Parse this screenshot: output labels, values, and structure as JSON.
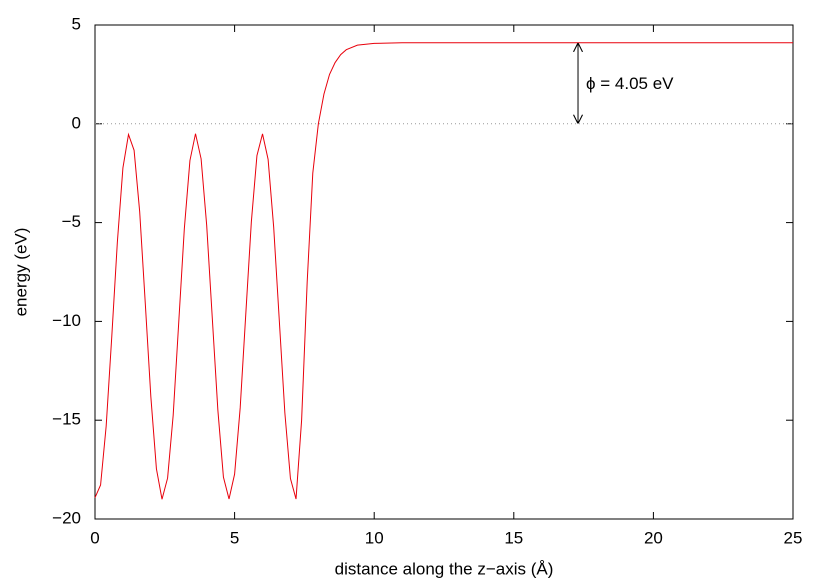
{
  "chart_data": {
    "type": "line",
    "x_label": "distance along the z−axis (Å)",
    "y_label": "energy (eV)",
    "xlim": [
      0,
      25
    ],
    "xticks": [
      0,
      5,
      10,
      15,
      20,
      25
    ],
    "ylim": [
      -20,
      5
    ],
    "yticks": [
      {
        "value": -20,
        "label": "−20"
      },
      {
        "value": -15,
        "label": "−15"
      },
      {
        "value": -10,
        "label": "−10"
      },
      {
        "value": -5,
        "label": "−5"
      },
      0,
      5
    ],
    "zero_line": true,
    "annotation": {
      "text": "ϕ = 4.05 eV",
      "x": 17.3,
      "y_from": 0,
      "y_to": 4.1
    },
    "series": [
      {
        "color": "#e8000b",
        "x": [
          0,
          0.2,
          0.4,
          0.6,
          0.8,
          1.0,
          1.2,
          1.4,
          1.6,
          1.8,
          2.0,
          2.2,
          2.4,
          2.6,
          2.8,
          3.0,
          3.2,
          3.4,
          3.6,
          3.8,
          4.0,
          4.2,
          4.4,
          4.6,
          4.8,
          5.0,
          5.2,
          5.4,
          5.6,
          5.8,
          6.0,
          6.2,
          6.4,
          6.6,
          6.8,
          7.0,
          7.2,
          7.4,
          7.6,
          7.8,
          8.0,
          8.2,
          8.4,
          8.6,
          8.8,
          9.0,
          9.4,
          10,
          11,
          25
        ],
        "values": [
          -18.92,
          -18.28,
          -15.3,
          -10.79,
          -6.0,
          -2.23,
          -0.54,
          -1.34,
          -4.44,
          -9.07,
          -13.81,
          -17.46,
          -19.0,
          -17.93,
          -14.75,
          -10.03,
          -5.3,
          -1.86,
          -0.5,
          -1.77,
          -5.13,
          -9.81,
          -14.48,
          -17.88,
          -18.99,
          -17.73,
          -14.38,
          -9.64,
          -4.96,
          -1.61,
          -0.51,
          -1.8,
          -5.24,
          -9.93,
          -14.63,
          -17.95,
          -18.99,
          -15.0,
          -8.0,
          -2.5,
          0.0,
          1.5,
          2.5,
          3.1,
          3.5,
          3.75,
          3.98,
          4.07,
          4.1,
          4.1
        ]
      }
    ]
  }
}
